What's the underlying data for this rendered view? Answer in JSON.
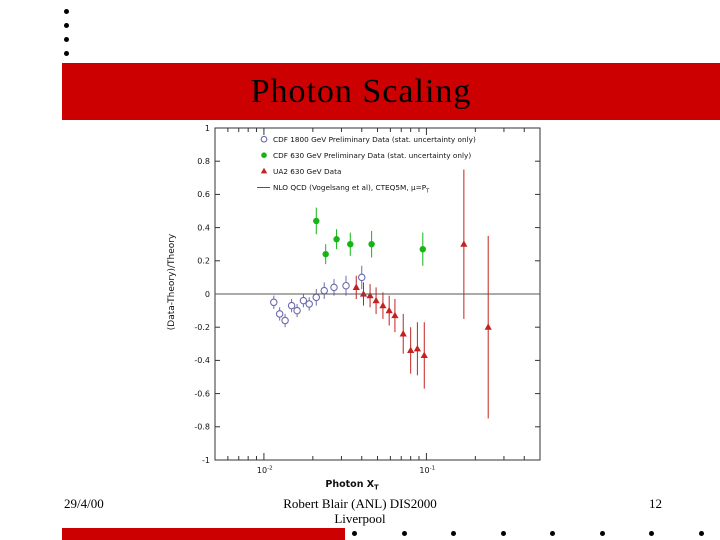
{
  "slide": {
    "title": "Photon Scaling",
    "footer": {
      "date": "29/4/00",
      "center_line1": "Robert Blair (ANL) DIS2000",
      "center_line2": "Liverpool",
      "page_number": "12"
    }
  },
  "colors": {
    "banner_red": "#cc0000",
    "cdf_1800_marker": "#6b6bac",
    "cdf_630_marker": "#14b514",
    "ua2_marker": "#c32222",
    "theory_line": "#555555"
  },
  "chart_data": {
    "type": "scatter",
    "x_scale": "log",
    "xlabel": "Photon X_T",
    "ylabel": "(Data-Theory)/Theory",
    "xlim": [
      0.005,
      0.5
    ],
    "ylim": [
      -1,
      1
    ],
    "y_ticks": [
      1,
      0.8,
      0.6,
      0.4,
      0.2,
      0,
      -0.2,
      -0.4,
      -0.6,
      -0.8,
      -1
    ],
    "x_ticks": [
      {
        "v": 0.01,
        "label": "10^-2"
      },
      {
        "v": 0.1,
        "label": "10^-1"
      }
    ],
    "legend_position": "top-left-inside",
    "series": [
      {
        "name": "CDF 1800 GeV Preliminary Data (stat. uncertainty only)",
        "marker": "open-circle",
        "color": "#6b6bac",
        "points": [
          [
            0.0115,
            -0.05,
            0.04
          ],
          [
            0.0125,
            -0.12,
            0.04
          ],
          [
            0.0135,
            -0.16,
            0.04
          ],
          [
            0.0148,
            -0.07,
            0.04
          ],
          [
            0.016,
            -0.1,
            0.04
          ],
          [
            0.0175,
            -0.04,
            0.04
          ],
          [
            0.019,
            -0.06,
            0.04
          ],
          [
            0.021,
            -0.02,
            0.05
          ],
          [
            0.0235,
            0.02,
            0.05
          ],
          [
            0.027,
            0.04,
            0.05
          ],
          [
            0.032,
            0.05,
            0.06
          ],
          [
            0.04,
            0.1,
            0.07
          ]
        ]
      },
      {
        "name": "CDF 630 GeV Preliminary Data (stat. uncertainty only)",
        "marker": "filled-circle",
        "color": "#14b514",
        "points": [
          [
            0.021,
            0.44,
            0.08
          ],
          [
            0.024,
            0.24,
            0.06
          ],
          [
            0.028,
            0.33,
            0.06
          ],
          [
            0.034,
            0.3,
            0.07
          ],
          [
            0.046,
            0.3,
            0.08
          ],
          [
            0.095,
            0.27,
            0.1
          ]
        ]
      },
      {
        "name": "UA2 630 GeV Data",
        "marker": "filled-triangle",
        "color": "#c32222",
        "points": [
          [
            0.037,
            0.04,
            0.07
          ],
          [
            0.041,
            0.0,
            0.07
          ],
          [
            0.045,
            -0.01,
            0.07
          ],
          [
            0.049,
            -0.04,
            0.08
          ],
          [
            0.054,
            -0.07,
            0.08
          ],
          [
            0.059,
            -0.1,
            0.09
          ],
          [
            0.064,
            -0.13,
            0.1
          ],
          [
            0.072,
            -0.24,
            0.12
          ],
          [
            0.08,
            -0.34,
            0.14
          ],
          [
            0.088,
            -0.33,
            0.16
          ],
          [
            0.097,
            -0.37,
            0.2
          ],
          [
            0.17,
            0.3,
            0.45
          ],
          [
            0.24,
            -0.2,
            0.55
          ]
        ]
      },
      {
        "name": "NLO QCD (Vogelsang et al), CTEQ5M, μ=P_T",
        "marker": "line",
        "color": "#555555",
        "y": 0
      }
    ]
  }
}
